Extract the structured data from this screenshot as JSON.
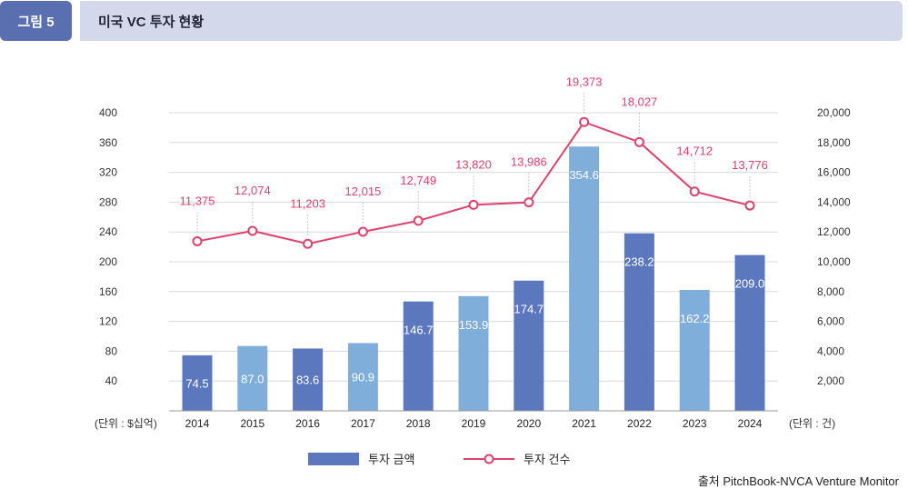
{
  "figure": {
    "label": "그림 5",
    "title": "미국 VC 투자 현황",
    "source": "출처 PitchBook-NVCA Venture Monitor"
  },
  "chart_data": {
    "type": "bar",
    "categories": [
      "2014",
      "2015",
      "2016",
      "2017",
      "2018",
      "2019",
      "2020",
      "2021",
      "2022",
      "2023",
      "2024"
    ],
    "series": [
      {
        "name": "투자 금액",
        "type": "bar",
        "axis": "left",
        "values": [
          74.5,
          87.0,
          83.6,
          90.9,
          146.7,
          153.9,
          174.7,
          354.6,
          238.2,
          162.2,
          209.0
        ],
        "labels": [
          "74.5",
          "87.0",
          "83.6",
          "90.9",
          "146.7",
          "153.9",
          "174.7",
          "354.6",
          "238.2",
          "162.2",
          "209.0"
        ],
        "colors": [
          "#5b78bf",
          "#80aedb",
          "#5b78bf",
          "#80aedb",
          "#5b78bf",
          "#80aedb",
          "#5b78bf",
          "#80aedb",
          "#5b78bf",
          "#80aedb",
          "#5b78bf"
        ]
      },
      {
        "name": "투자 건수",
        "type": "line",
        "axis": "right",
        "values": [
          11375,
          12074,
          11203,
          12015,
          12749,
          13820,
          13986,
          19373,
          18027,
          14712,
          13776
        ],
        "labels": [
          "11,375",
          "12,074",
          "11,203",
          "12,015",
          "12,749",
          "13,820",
          "13,986",
          "19,373",
          "18,027",
          "14,712",
          "13,776"
        ],
        "color": "#e0416b"
      }
    ],
    "y_left": {
      "unit_label": "(단위 : $십억)",
      "ylim": [
        0,
        400
      ],
      "ticks": [
        "40",
        "80",
        "120",
        "160",
        "200",
        "240",
        "280",
        "320",
        "360",
        "400"
      ]
    },
    "y_right": {
      "unit_label": "(단위 : 건)",
      "ylim": [
        0,
        20000
      ],
      "ticks": [
        "2,000",
        "4,000",
        "6,000",
        "8,000",
        "10,000",
        "12,000",
        "14,000",
        "16,000",
        "18,000",
        "20,000"
      ]
    },
    "grid": true,
    "legend_position": "bottom-center"
  }
}
